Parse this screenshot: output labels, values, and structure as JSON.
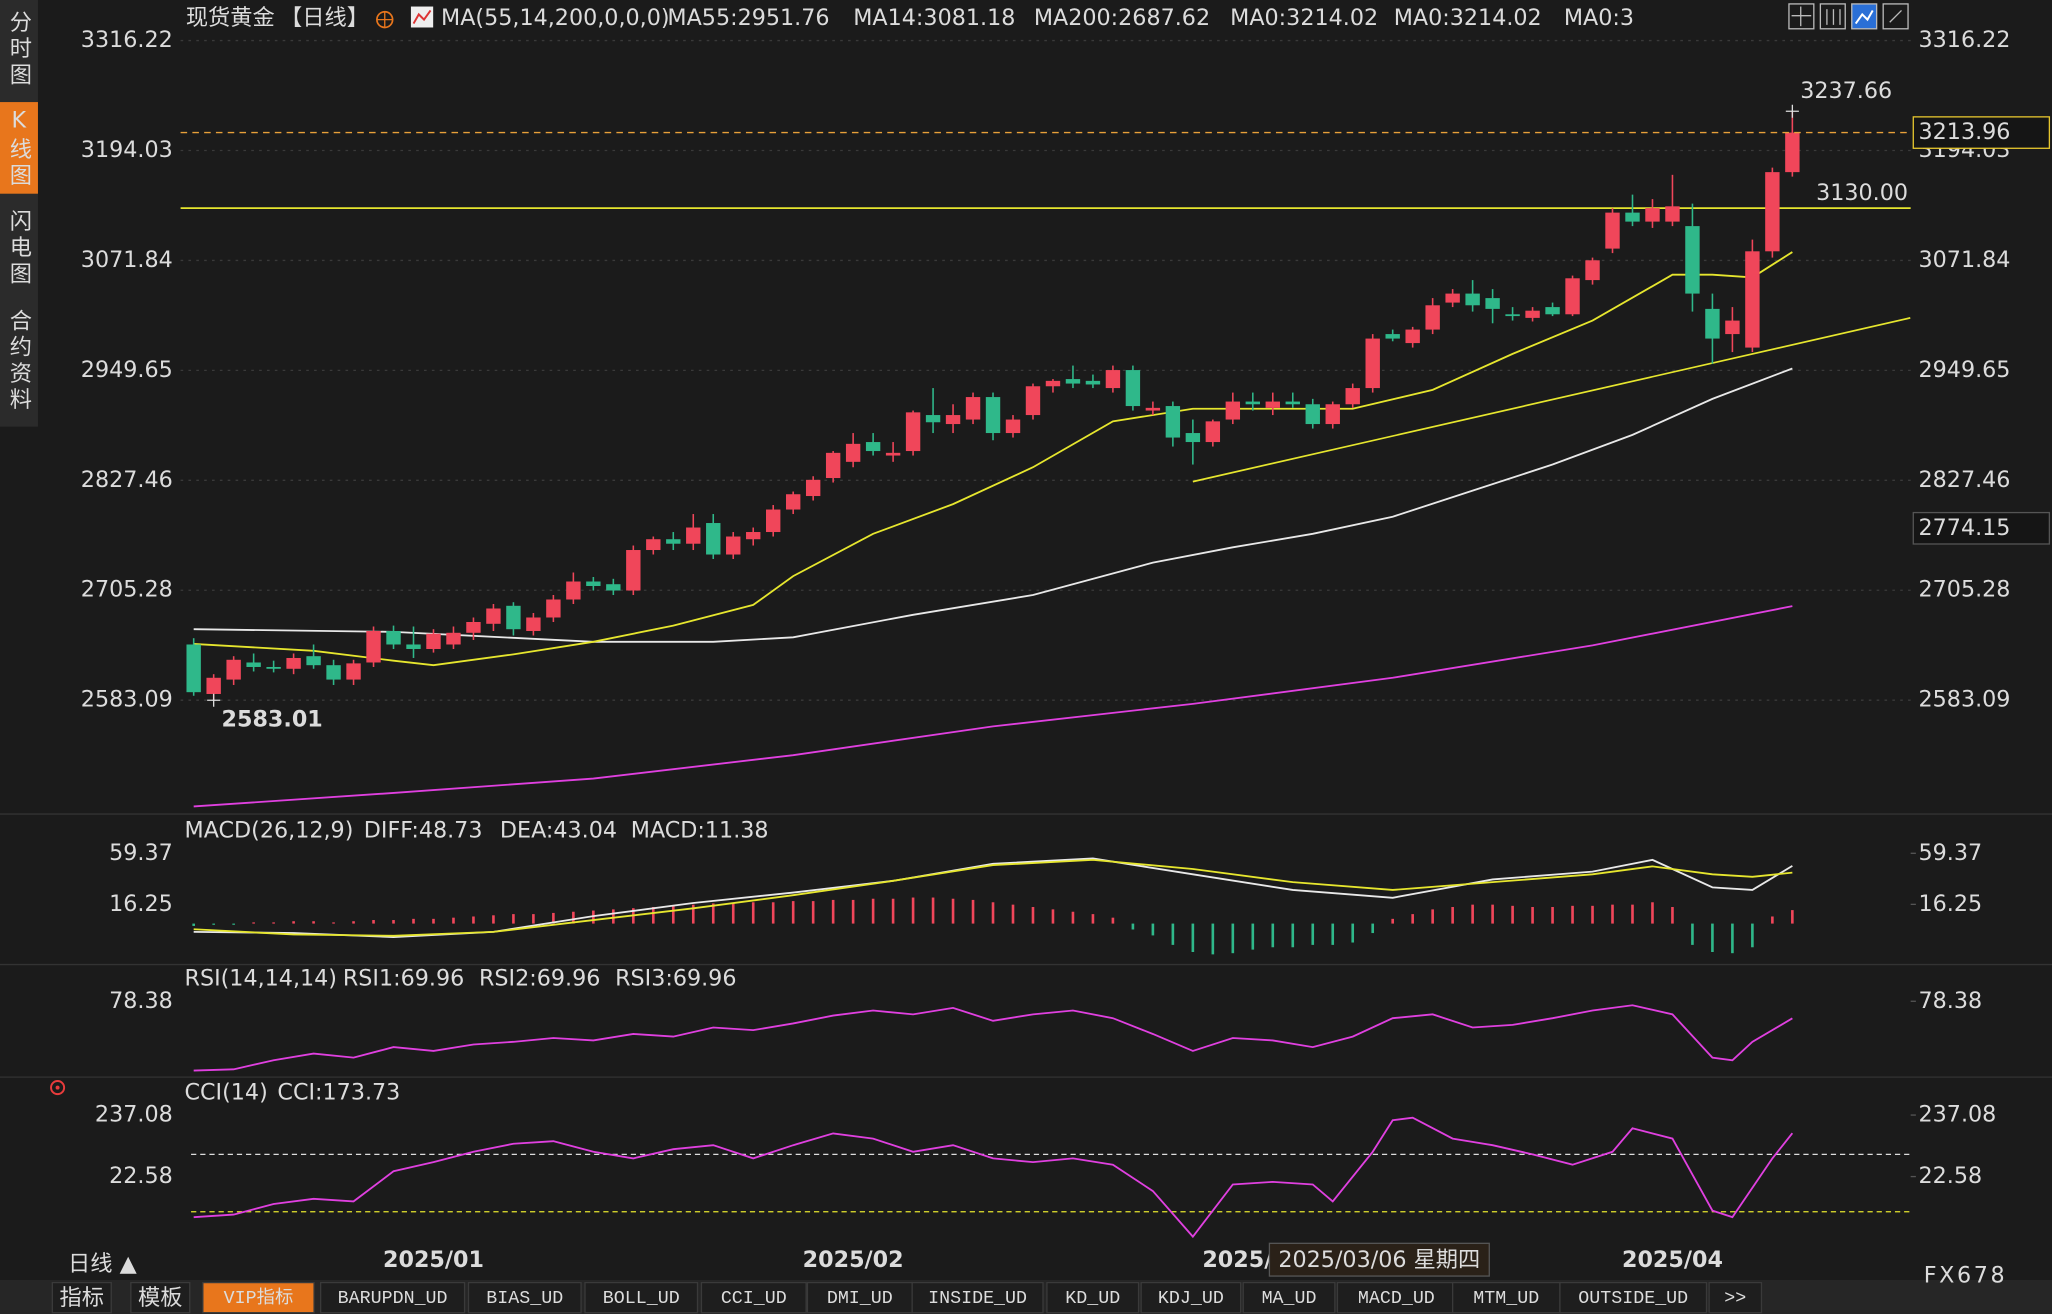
{
  "ui": {
    "side_tabs": [
      "分时图",
      "K线图",
      "闪电图",
      "合约资料"
    ],
    "active_side_tab": 1,
    "period_button": "日线 ▲",
    "bottom_tabs": [
      "指标",
      "模板",
      "VIP指标",
      "BARUPDN_UD",
      "BIAS_UD",
      "BOLL_UD",
      "CCI_UD",
      "DMI_UD",
      "INSIDE_UD",
      "KD_UD",
      "KDJ_UD",
      "MA_UD",
      "MACD_UD",
      "MTM_UD",
      "OUTSIDE_UD",
      ">>"
    ],
    "active_bottom_tab": 2,
    "brand": "FX678"
  },
  "chart_data": [
    {
      "type": "candlestick",
      "title": "现货黄金",
      "period": "【日线】",
      "indicator": "MA(55,14,200,0,0,0)",
      "categories": [
        null,
        null,
        null,
        null,
        null,
        null,
        null,
        null,
        null,
        null,
        null,
        null,
        "2025/01",
        null,
        null,
        null,
        null,
        null,
        null,
        null,
        null,
        null,
        null,
        null,
        null,
        null,
        null,
        null,
        null,
        null,
        null,
        null,
        null,
        "2025/02",
        null,
        null,
        null,
        null,
        null,
        null,
        null,
        null,
        null,
        null,
        null,
        null,
        null,
        null,
        null,
        null,
        null,
        null,
        null,
        "2025/03",
        null,
        null,
        null,
        null,
        null,
        null,
        null,
        null,
        null,
        null,
        null,
        null,
        null,
        null,
        null,
        null,
        null,
        null,
        null,
        null,
        "2025/04",
        null,
        null,
        null,
        null,
        null,
        null
      ],
      "open": [
        2645,
        2590,
        2606,
        2625,
        2620,
        2618,
        2632,
        2622,
        2606,
        2625,
        2660,
        2645,
        2640,
        2645,
        2658,
        2668,
        2688,
        2660,
        2675,
        2695,
        2715,
        2712,
        2705,
        2750,
        2762,
        2757,
        2780,
        2745,
        2762,
        2770,
        2795,
        2810,
        2830,
        2848,
        2870,
        2855,
        2860,
        2900,
        2890,
        2895,
        2920,
        2880,
        2900,
        2932,
        2940,
        2938,
        2930,
        2950,
        2905,
        2910,
        2880,
        2870,
        2895,
        2915,
        2908,
        2915,
        2912,
        2890,
        2912,
        2930,
        2990,
        2980,
        2995,
        3025,
        3035,
        3030,
        3012,
        3008,
        3020,
        3012,
        3050,
        3085,
        3125,
        3115,
        3115,
        3110,
        3018,
        2990,
        2975,
        3082,
        3170
      ],
      "high": [
        2652,
        2612,
        2632,
        2635,
        2627,
        2635,
        2645,
        2628,
        2628,
        2665,
        2666,
        2665,
        2662,
        2665,
        2675,
        2690,
        2692,
        2680,
        2700,
        2725,
        2720,
        2718,
        2755,
        2765,
        2770,
        2790,
        2790,
        2770,
        2775,
        2800,
        2815,
        2832,
        2860,
        2880,
        2880,
        2870,
        2905,
        2930,
        2912,
        2925,
        2925,
        2900,
        2935,
        2940,
        2955,
        2945,
        2955,
        2955,
        2915,
        2915,
        2895,
        2895,
        2925,
        2925,
        2925,
        2925,
        2918,
        2915,
        2935,
        2990,
        2995,
        2998,
        3030,
        3040,
        3050,
        3040,
        3020,
        3020,
        3025,
        3055,
        3075,
        3130,
        3145,
        3140,
        3167,
        3135,
        3035,
        3020,
        3095,
        3175,
        3237.66
      ],
      "low": [
        2588,
        2583.01,
        2600,
        2615,
        2614,
        2612,
        2618,
        2600,
        2600,
        2620,
        2640,
        2630,
        2636,
        2640,
        2650,
        2660,
        2655,
        2655,
        2670,
        2690,
        2705,
        2700,
        2700,
        2745,
        2750,
        2750,
        2740,
        2740,
        2755,
        2765,
        2790,
        2805,
        2825,
        2842,
        2855,
        2848,
        2855,
        2880,
        2880,
        2890,
        2872,
        2875,
        2895,
        2925,
        2930,
        2930,
        2925,
        2905,
        2900,
        2865,
        2845,
        2865,
        2890,
        2905,
        2900,
        2908,
        2885,
        2885,
        2908,
        2925,
        2982,
        2975,
        2990,
        3020,
        3015,
        3002,
        3005,
        3004,
        3010,
        3010,
        3045,
        3080,
        3110,
        3108,
        3110,
        3015,
        2957,
        2970,
        2970,
        3075,
        3165
      ],
      "close": [
        2592,
        2608,
        2628,
        2620,
        2618,
        2630,
        2622,
        2606,
        2624,
        2660,
        2645,
        2640,
        2657,
        2658,
        2670,
        2685,
        2662,
        2675,
        2695,
        2715,
        2710,
        2705,
        2750,
        2762,
        2757,
        2775,
        2745,
        2765,
        2770,
        2795,
        2812,
        2828,
        2858,
        2868,
        2860,
        2858,
        2903,
        2892,
        2900,
        2920,
        2880,
        2895,
        2932,
        2938,
        2935,
        2934,
        2950,
        2910,
        2908,
        2875,
        2870,
        2893,
        2915,
        2912,
        2915,
        2912,
        2890,
        2912,
        2930,
        2985,
        2985,
        2995,
        3022,
        3035,
        3022,
        3018,
        3010,
        3016,
        3012,
        3052,
        3072,
        3125,
        3115,
        3130,
        3132,
        3035,
        2985,
        3005,
        3082,
        3170,
        3213.96
      ],
      "up_color": "#f0465a",
      "down_color": "#2fb88a",
      "ylim": [
        2459.45,
        3329.31
      ],
      "yticks": [
        2583.09,
        2705.28,
        2827.46,
        2949.65,
        3071.84,
        3194.03,
        3316.22
      ],
      "grid": true,
      "series": [
        {
          "name": "MA55:2951.76",
          "color": "#e8e8e8",
          "x": [
            0,
            10,
            20,
            26,
            30,
            36,
            42,
            48,
            52,
            56,
            60,
            64,
            68,
            72,
            76,
            80
          ],
          "values": [
            2662,
            2659,
            2648,
            2648,
            2653,
            2678,
            2700,
            2736,
            2753,
            2768,
            2787,
            2816,
            2845,
            2878,
            2918,
            2951.76
          ]
        },
        {
          "name": "MA14:3081.18",
          "color": "#e6e62e",
          "x": [
            0,
            6,
            10,
            12,
            16,
            20,
            24,
            28,
            30,
            34,
            38,
            42,
            46,
            50,
            54,
            58,
            62,
            66,
            70,
            74,
            76,
            78,
            80
          ],
          "values": [
            2645.6,
            2638,
            2627,
            2622,
            2634,
            2648,
            2666,
            2689,
            2721,
            2768,
            2801,
            2842,
            2893,
            2907,
            2907,
            2907,
            2928,
            2968,
            3005,
            3056,
            3056,
            3053,
            3081.18
          ]
        },
        {
          "name": "MA200:2687.62",
          "color": "#e040e0",
          "x": [
            0,
            10,
            20,
            30,
            40,
            50,
            60,
            70,
            80
          ],
          "values": [
            2465,
            2480,
            2496,
            2522,
            2554,
            2579,
            2608,
            2644,
            2687.62
          ]
        }
      ],
      "legend_extra": [
        {
          "name": "MA0:3214.02",
          "color": "#3ec83e"
        },
        {
          "name": "MA0:3214.02",
          "color": "#9a9a9a"
        },
        {
          "name": "MA0:3",
          "color": "#e83c3c"
        }
      ],
      "hlines": [
        {
          "value": 3130,
          "label": "3130.00",
          "color": "#e6e62e"
        }
      ],
      "trendlines": [
        {
          "x": [
            50,
            85.9
          ],
          "values": [
            2826,
            3008
          ],
          "color": "#e6e62e"
        }
      ],
      "crosshair": {
        "date": "2025/03/06 星期四",
        "price": 2774.15
      }
    },
    {
      "type": "macd",
      "title": "MACD(26,12,9)",
      "ylim": [
        -32.4,
        89.2
      ],
      "yticks": [
        16.25,
        59.37
      ],
      "series": [
        {
          "name": "DIFF:48.73",
          "color": "#e8e8e8",
          "x": [
            0,
            5,
            10,
            15,
            20,
            25,
            30,
            35,
            40,
            45,
            50,
            55,
            60,
            65,
            70,
            73,
            76,
            78,
            80
          ],
          "values": [
            -7,
            -8,
            -11.4,
            -7,
            6.3,
            17.4,
            26.2,
            36.1,
            50.5,
            55,
            41.6,
            28.4,
            21.8,
            37.3,
            43.9,
            53.8,
            30.6,
            28.4,
            48.73
          ]
        },
        {
          "name": "DEA:43.04",
          "color": "#e6e62e",
          "x": [
            0,
            5,
            10,
            15,
            20,
            25,
            30,
            35,
            40,
            45,
            50,
            55,
            60,
            65,
            70,
            73,
            76,
            78,
            80
          ],
          "values": [
            -4.8,
            -9.2,
            -10.3,
            -7,
            3,
            12.9,
            24,
            36.1,
            49.4,
            53.8,
            46.1,
            35,
            28.4,
            35,
            41.6,
            48.3,
            41.6,
            39.5,
            43.04
          ]
        }
      ],
      "histogram": {
        "name": "MACD:11.38",
        "color": "#e040e0",
        "up_color": "#f0465a",
        "down_color": "#2fb88a",
        "values": [
          -2,
          -1,
          -1,
          1,
          1,
          2,
          2,
          1,
          2,
          3,
          3,
          4,
          4,
          5,
          6,
          7,
          8,
          8,
          9,
          10,
          11,
          12,
          13,
          14,
          15,
          16,
          17,
          17,
          18,
          18,
          19,
          19,
          20,
          20,
          21,
          21,
          22,
          22,
          21,
          20,
          18,
          16,
          14,
          12,
          10,
          8,
          5,
          -5,
          -10,
          -18,
          -24,
          -26,
          -25,
          -22,
          -20,
          -20,
          -18,
          -18,
          -16,
          -8,
          4,
          8,
          12,
          14,
          16,
          16,
          15,
          14,
          14,
          15,
          15,
          16,
          16,
          18,
          14,
          -18,
          -24,
          -25,
          -20,
          6,
          11.38
        ]
      }
    },
    {
      "type": "line",
      "title": "RSI(14,14,14)",
      "ylim": [
        41.5,
        94.6
      ],
      "yticks": [
        78.38
      ],
      "legend": [
        {
          "name": "RSI1:69.96",
          "color": "#e8e8e8"
        },
        {
          "name": "RSI2:69.96",
          "color": "#e6e62e"
        },
        {
          "name": "RSI3:69.96",
          "color": "#e040e0"
        }
      ],
      "series": [
        {
          "color": "#e040e0",
          "x": [
            0,
            2,
            4,
            6,
            8,
            10,
            12,
            14,
            16,
            18,
            20,
            22,
            24,
            26,
            28,
            30,
            32,
            34,
            36,
            38,
            40,
            42,
            44,
            46,
            48,
            50,
            52,
            54,
            56,
            58,
            60,
            62,
            64,
            66,
            68,
            70,
            72,
            74,
            76,
            77,
            78,
            80
          ],
          "values": [
            44.1,
            44.7,
            49.2,
            52.5,
            50.5,
            55.7,
            53.8,
            57,
            58.3,
            60.2,
            59,
            62.2,
            60.9,
            65.4,
            64.1,
            67.4,
            71.3,
            73.8,
            71.9,
            75.1,
            68.7,
            71.9,
            73.8,
            70,
            62.2,
            53.8,
            60.2,
            59,
            55.7,
            60.9,
            70,
            71.9,
            65.4,
            66.7,
            70,
            73.8,
            76.4,
            71.9,
            50.5,
            49.2,
            58.3,
            69.96
          ]
        }
      ]
    },
    {
      "type": "line",
      "title": "CCI(14)",
      "ylim": [
        -201.1,
        355.7
      ],
      "yticks": [
        22.58,
        237.08
      ],
      "levels": [
        {
          "value": 100,
          "color": "#dddddd"
        },
        {
          "value": -100,
          "color": "#e6e62e"
        }
      ],
      "series": [
        {
          "name": "CCI:173.73",
          "color": "#e040e0",
          "x": [
            0,
            2,
            4,
            6,
            8,
            10,
            12,
            14,
            16,
            18,
            20,
            22,
            24,
            26,
            28,
            30,
            32,
            34,
            36,
            38,
            40,
            42,
            44,
            46,
            48,
            50,
            52,
            54,
            56,
            57,
            59,
            60,
            61,
            63,
            65,
            67,
            69,
            71,
            72,
            74,
            76,
            77,
            79,
            80
          ],
          "values": [
            -119,
            -110,
            -73,
            -55,
            -64,
            41,
            73,
            109,
            137,
            146,
            109,
            86,
            118,
            132,
            86,
            132,
            173,
            155,
            109,
            132,
            86,
            73,
            86,
            64,
            -28,
            -187,
            -5,
            4,
            -5,
            -64,
            109,
            219,
            228,
            155,
            132,
            100,
            64,
            109,
            191,
            155,
            -96,
            -119,
            86,
            173.73
          ]
        }
      ]
    }
  ]
}
